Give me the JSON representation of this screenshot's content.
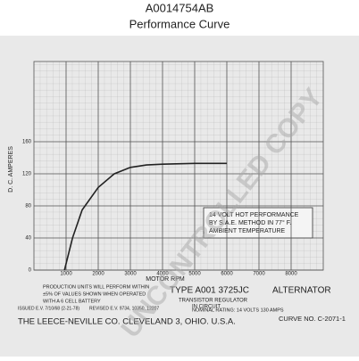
{
  "chart_data": {
    "type": "line",
    "title": "A0014754AB",
    "subtitle": "Performance Curve",
    "y_label": "D. C. AMPERES",
    "x_label": "MOTOR RPM",
    "x": [
      950,
      1200,
      1500,
      2000,
      2500,
      3000,
      3500,
      4000,
      5000,
      6000
    ],
    "series": [
      {
        "name": "14 VOLT HOT PERFORMANCE",
        "color": "#222222",
        "values": [
          0,
          40,
          75,
          103,
          120,
          128,
          131,
          132,
          133,
          133
        ]
      }
    ],
    "xlim": [
      0,
      9000
    ],
    "ylim": [
      0,
      260
    ],
    "xticks": [
      1000,
      2000,
      3000,
      4000,
      5000,
      6000,
      7000,
      8000
    ],
    "yticks": [
      0,
      40,
      80,
      120,
      160
    ],
    "grid": true,
    "box_note": [
      "14 VOLT HOT PERFORMANCE",
      "BY S.A.E. METHOD IN 77° F.",
      "AMBIENT TEMPERATURE"
    ],
    "footer": [
      "PRODUCTION UNITS WILL PERFORM WITHIN",
      "±5% OF VALUES SHOWN WHEN OPERATED",
      "WITH A 6 CELL BATTERY",
      "TYPE A001 3725JC",
      "ALTERNATOR",
      "TRANSISTOR REGULATOR",
      "IN CIRCUIT",
      "ISSUED E.V. 7/10/68 (2-21-78)",
      "REVISED E.V. 9734, 10350, 12207",
      "NOMINAL RATING: 14 VOLTS 130 AMPS",
      "THE LEECE-NEVILLE CO. CLEVELAND 3, OHIO. U.S.A.",
      "CURVE NO. C-2071-1"
    ],
    "watermark": "UNCONTROLLED COPY"
  }
}
